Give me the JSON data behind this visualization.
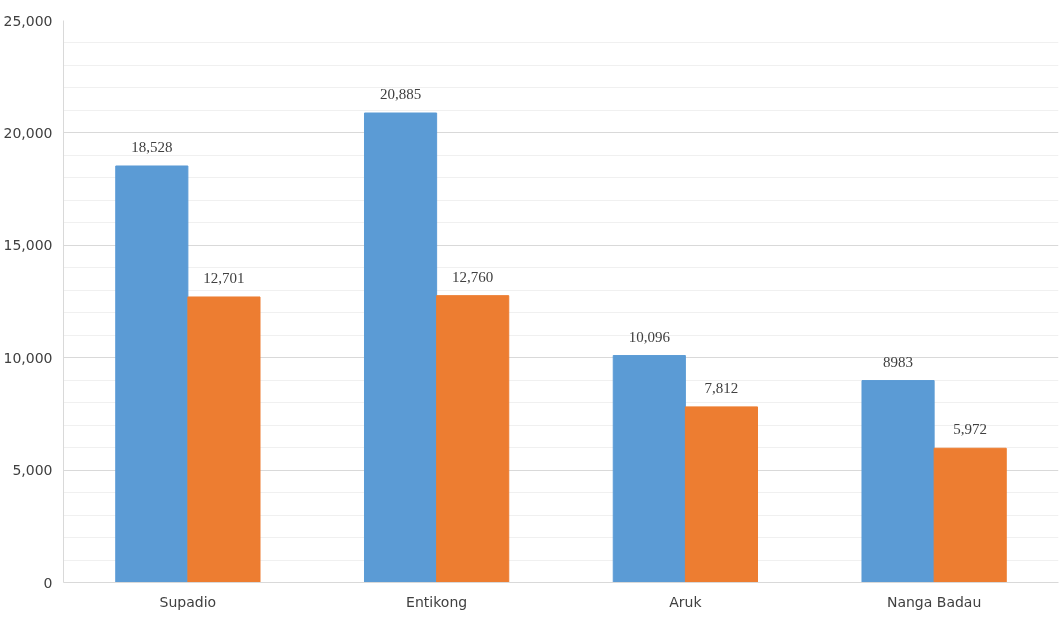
{
  "chart_data": {
    "type": "bar",
    "categories": [
      "Supadio",
      "Entikong",
      "Aruk",
      "Nanga Badau"
    ],
    "series": [
      {
        "color": "#5b9bd5",
        "values": [
          18528,
          20885,
          10096,
          8983
        ],
        "value_labels": [
          "18,528",
          "20,885",
          "10,096",
          "8983"
        ]
      },
      {
        "color": "#ed7d31",
        "values": [
          12701,
          12760,
          7812,
          5972
        ],
        "value_labels": [
          "12,701",
          "12,760",
          "7,812",
          "5,972"
        ]
      }
    ],
    "ylim": [
      0,
      25000
    ],
    "yticks": [
      {
        "value": 0,
        "label": "0"
      },
      {
        "value": 1000,
        "label": null
      },
      {
        "value": 2000,
        "label": null
      },
      {
        "value": 3000,
        "label": null
      },
      {
        "value": 4000,
        "label": null
      },
      {
        "value": 5000,
        "label": "5,000"
      },
      {
        "value": 6000,
        "label": null
      },
      {
        "value": 7000,
        "label": null
      },
      {
        "value": 8000,
        "label": null
      },
      {
        "value": 9000,
        "label": null
      },
      {
        "value": 10000,
        "label": "10,000"
      },
      {
        "value": 11000,
        "label": null
      },
      {
        "value": 12000,
        "label": null
      },
      {
        "value": 13000,
        "label": null
      },
      {
        "value": 14000,
        "label": null
      },
      {
        "value": 15000,
        "label": "15,000"
      },
      {
        "value": 16000,
        "label": null
      },
      {
        "value": 17000,
        "label": null
      },
      {
        "value": 18000,
        "label": null
      },
      {
        "value": 19000,
        "label": null
      },
      {
        "value": 20000,
        "label": "20,000"
      },
      {
        "value": 21000,
        "label": null
      },
      {
        "value": 22000,
        "label": null
      },
      {
        "value": 23000,
        "label": null
      },
      {
        "value": 24000,
        "label": null
      },
      {
        "value": 25000,
        "label": "25,000"
      }
    ],
    "grid": "y"
  }
}
